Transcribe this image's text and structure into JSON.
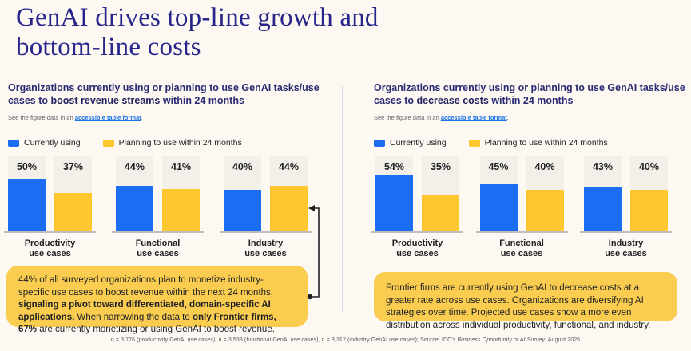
{
  "page": {
    "title_line1": "GenAI drives top-line growth and",
    "title_line2": "bottom-line costs",
    "footnote_prefix": "n = 3,776 (productivity GenAI use cases), n = 3,533 (functional GenAI use cases), n = 3,312 (industry GenAI use cases); Source: IDC's ",
    "footnote_italic": "Business Opportunity of AI Survey",
    "footnote_suffix": ", August 2025"
  },
  "colors": {
    "currently_using": "#1B6EF2",
    "planning": "#FEC72F",
    "callout_bg": "#FACD51",
    "title_navy": "#25258B",
    "heading_navy": "#2B2B73",
    "link_blue": "#1A73E8",
    "column_bg": "#F3F0EA"
  },
  "panels": [
    {
      "heading_prefix": "Organizations currently using or planning to use GenAI tasks/use cases to ",
      "heading_bold": "boost revenue streams",
      "heading_suffix": " within 24 months",
      "note_prefix": "See the figure data in an ",
      "note_link": "accessible table format",
      "note_suffix": ".",
      "legend": [
        {
          "label": "Currently using"
        },
        {
          "label": "Planning to use within 24 months"
        }
      ],
      "groups": [
        {
          "label_line1": "Productivity",
          "label_line2": "use cases",
          "current_label": "50%",
          "planned_label": "37%"
        },
        {
          "label_line1": "Functional",
          "label_line2": "use cases",
          "current_label": "44%",
          "planned_label": "41%"
        },
        {
          "label_line1": "Industry",
          "label_line2": "use cases",
          "current_label": "40%",
          "planned_label": "44%"
        }
      ],
      "callout": {
        "part1": "44% of all surveyed organizations plan to monetize industry-specific use cases to boost revenue within the next 24 months, ",
        "bold1": "signaling a pivot toward differentiated, domain-specific AI applications.",
        "part2": " When narrowing the data to ",
        "bold2": "only Frontier firms, 67%",
        "part3": " are currently monetizing or using GenAI to boost revenue."
      }
    },
    {
      "heading_prefix": "Organizations currently using or planning to use GenAI tasks/use cases to ",
      "heading_bold": "decrease costs",
      "heading_suffix": " within 24 months",
      "note_prefix": "See the figure data in an ",
      "note_link": "accessible table format",
      "note_suffix": ".",
      "legend": [
        {
          "label": "Currently using"
        },
        {
          "label": "Planning to use within 24 months"
        }
      ],
      "groups": [
        {
          "label_line1": "Productivity",
          "label_line2": "use cases",
          "current_label": "54%",
          "planned_label": "35%"
        },
        {
          "label_line1": "Functional",
          "label_line2": "use cases",
          "current_label": "45%",
          "planned_label": "40%"
        },
        {
          "label_line1": "Industry",
          "label_line2": "use cases",
          "current_label": "43%",
          "planned_label": "40%"
        }
      ],
      "callout": {
        "text": "Frontier firms are currently using GenAI to decrease costs at a greater rate across use cases. Organizations are diversifying AI strategies over time. Projected use cases show a more even distribution across individual productivity, functional, and industry."
      }
    }
  ],
  "chart_data": [
    {
      "type": "bar",
      "title": "Organizations currently using or planning to use GenAI tasks/use cases to boost revenue streams within 24 months",
      "categories": [
        "Productivity use cases",
        "Functional use cases",
        "Industry use cases"
      ],
      "series": [
        {
          "name": "Currently using",
          "values": [
            50,
            44,
            40
          ]
        },
        {
          "name": "Planning to use within 24 months",
          "values": [
            37,
            41,
            44
          ]
        }
      ],
      "unit": "percent",
      "ylim": [
        0,
        60
      ],
      "grid": false,
      "legend_position": "top",
      "data_labels": true
    },
    {
      "type": "bar",
      "title": "Organizations currently using or planning to use GenAI tasks/use cases to decrease costs within 24 months",
      "categories": [
        "Productivity use cases",
        "Functional use cases",
        "Industry use cases"
      ],
      "series": [
        {
          "name": "Currently using",
          "values": [
            54,
            45,
            43
          ]
        },
        {
          "name": "Planning to use within 24 months",
          "values": [
            35,
            40,
            40
          ]
        }
      ],
      "unit": "percent",
      "ylim": [
        0,
        60
      ],
      "grid": false,
      "legend_position": "top",
      "data_labels": true
    }
  ]
}
